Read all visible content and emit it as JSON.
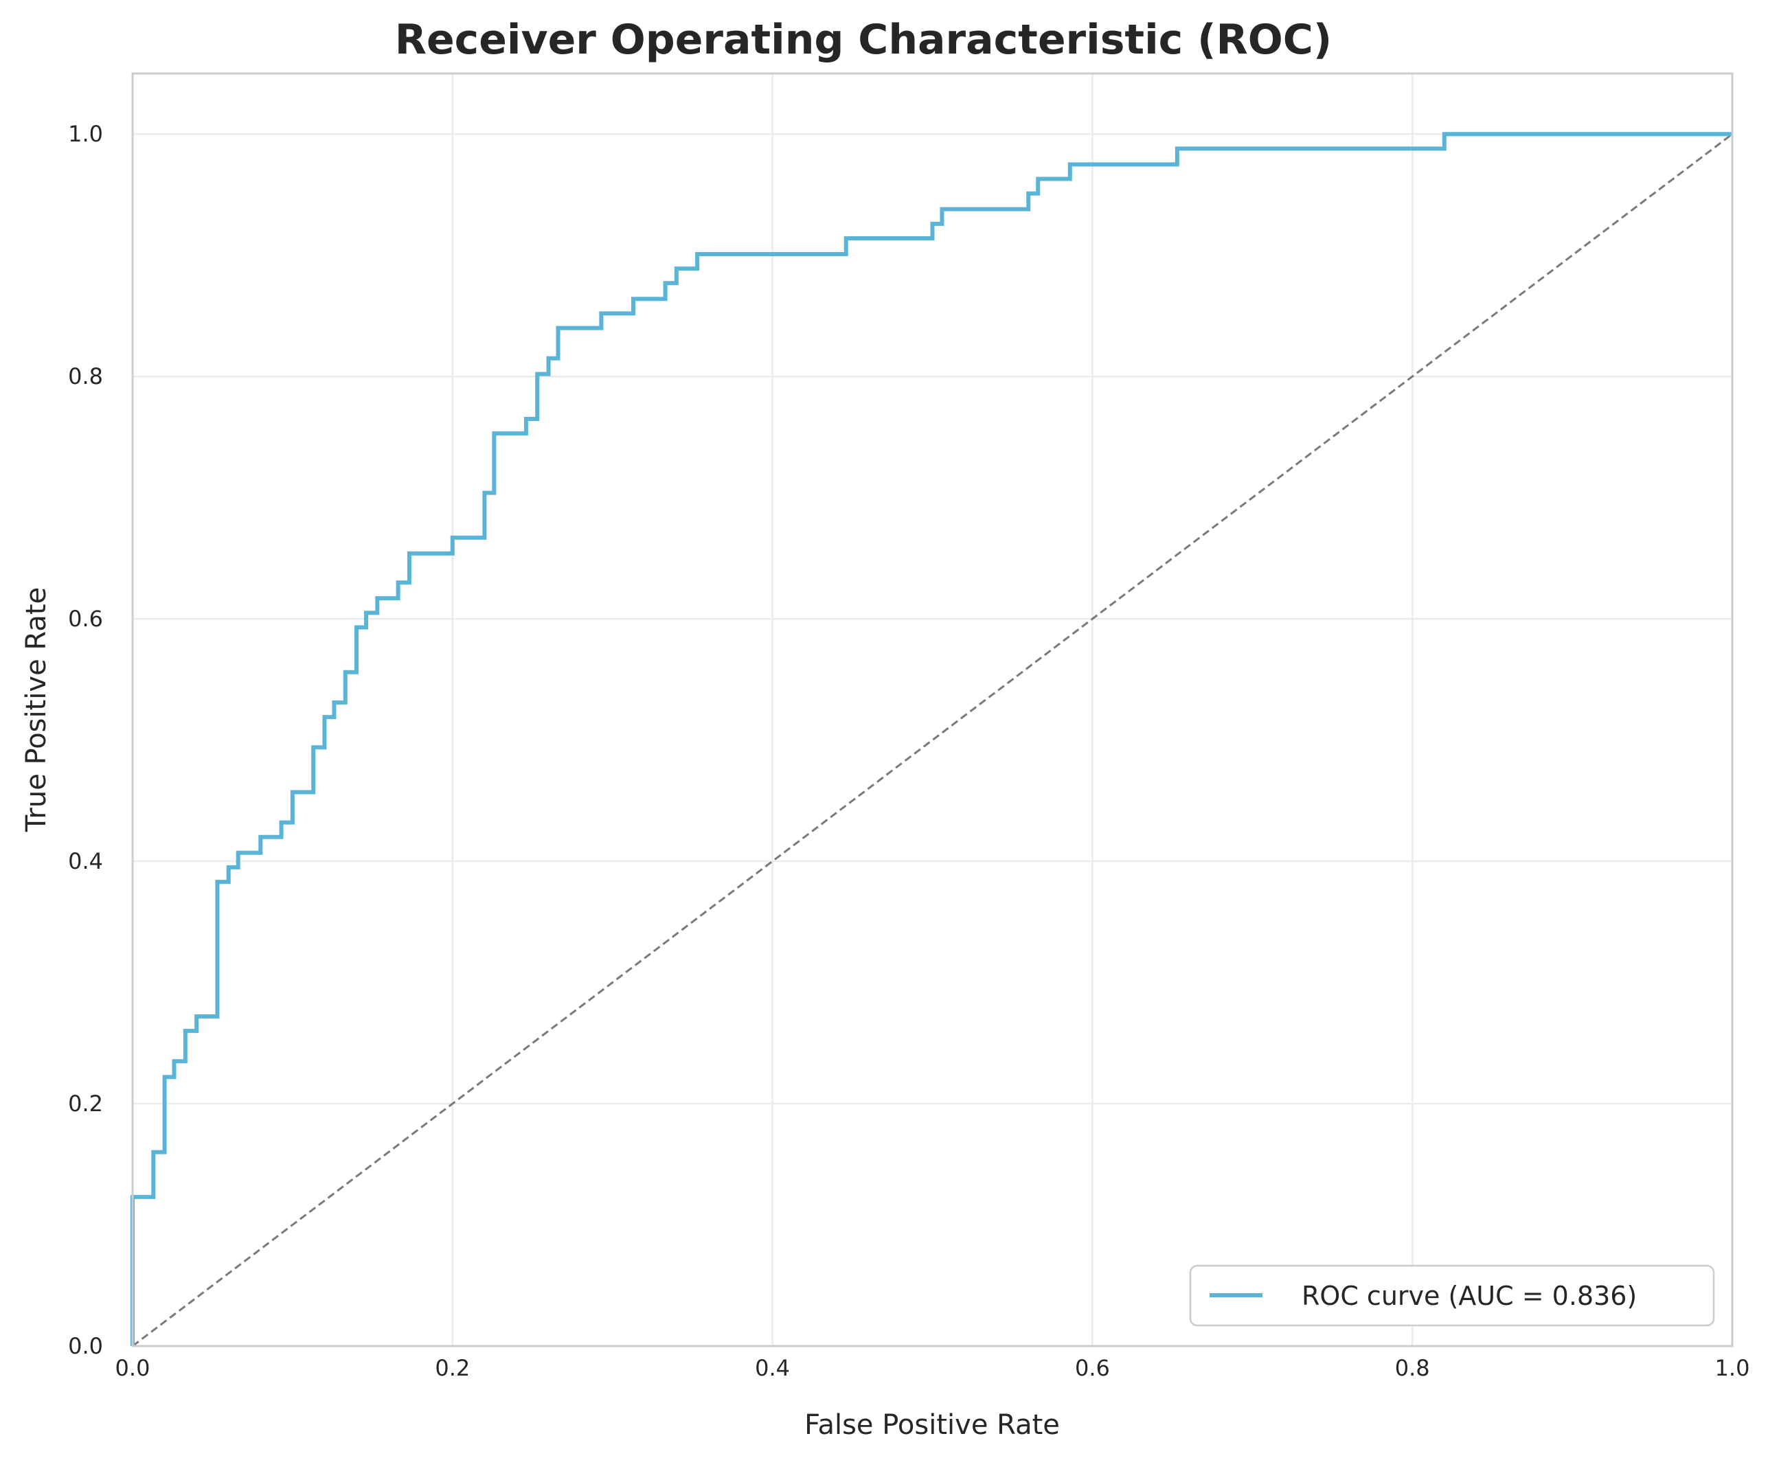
{
  "chart_data": {
    "type": "line",
    "title": "Receiver Operating Characteristic (ROC)",
    "xlabel": "False Positive Rate",
    "ylabel": "True Positive Rate",
    "xlim": [
      0,
      1.0
    ],
    "ylim": [
      0,
      1.05
    ],
    "xticks": [
      0.0,
      0.2,
      0.4,
      0.6,
      0.8,
      1.0
    ],
    "yticks": [
      0.0,
      0.2,
      0.4,
      0.6,
      0.8,
      1.0
    ],
    "xtick_labels": [
      "0.0",
      "0.2",
      "0.4",
      "0.6",
      "0.8",
      "1.0"
    ],
    "ytick_labels": [
      "0.0",
      "0.2",
      "0.4",
      "0.6",
      "0.8",
      "1.0"
    ],
    "grid": true,
    "legend_position": "lower-right",
    "series": [
      {
        "name": "ROC curve (AUC = 0.836)",
        "color": "#5ab4d6",
        "style": "step",
        "x": [
          0.0,
          0.0,
          0.013,
          0.013,
          0.02,
          0.02,
          0.026,
          0.026,
          0.033,
          0.033,
          0.04,
          0.04,
          0.053,
          0.053,
          0.06,
          0.06,
          0.066,
          0.066,
          0.08,
          0.08,
          0.093,
          0.093,
          0.1,
          0.1,
          0.113,
          0.113,
          0.12,
          0.12,
          0.126,
          0.126,
          0.133,
          0.133,
          0.14,
          0.14,
          0.146,
          0.146,
          0.153,
          0.153,
          0.166,
          0.166,
          0.173,
          0.173,
          0.2,
          0.2,
          0.22,
          0.22,
          0.226,
          0.226,
          0.246,
          0.246,
          0.253,
          0.253,
          0.26,
          0.26,
          0.266,
          0.266,
          0.293,
          0.293,
          0.313,
          0.313,
          0.333,
          0.333,
          0.34,
          0.34,
          0.353,
          0.353,
          0.446,
          0.446,
          0.5,
          0.5,
          0.506,
          0.506,
          0.56,
          0.56,
          0.566,
          0.566,
          0.586,
          0.586,
          0.653,
          0.653,
          0.82,
          0.82,
          1.0
        ],
        "y": [
          0.0,
          0.123,
          0.123,
          0.16,
          0.16,
          0.222,
          0.222,
          0.235,
          0.235,
          0.26,
          0.26,
          0.272,
          0.272,
          0.383,
          0.383,
          0.395,
          0.395,
          0.407,
          0.407,
          0.42,
          0.42,
          0.432,
          0.432,
          0.457,
          0.457,
          0.494,
          0.494,
          0.519,
          0.519,
          0.531,
          0.531,
          0.556,
          0.556,
          0.593,
          0.593,
          0.605,
          0.605,
          0.617,
          0.617,
          0.63,
          0.63,
          0.654,
          0.654,
          0.667,
          0.667,
          0.704,
          0.704,
          0.753,
          0.753,
          0.765,
          0.765,
          0.802,
          0.802,
          0.815,
          0.815,
          0.84,
          0.84,
          0.852,
          0.852,
          0.864,
          0.864,
          0.877,
          0.877,
          0.889,
          0.889,
          0.901,
          0.901,
          0.914,
          0.914,
          0.926,
          0.926,
          0.938,
          0.938,
          0.951,
          0.951,
          0.963,
          0.963,
          0.975,
          0.975,
          0.988,
          0.988,
          1.0,
          1.0
        ]
      },
      {
        "name": "",
        "color": "#7a7a7a",
        "style": "dashed",
        "x": [
          0,
          1
        ],
        "y": [
          0,
          1
        ]
      }
    ]
  }
}
